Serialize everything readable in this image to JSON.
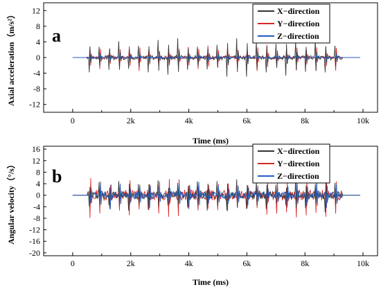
{
  "chart_data": [
    {
      "type": "line",
      "panel_label": "a",
      "xlabel": "Time (ms)",
      "ylabel": "Axial acceleration（m/s²）",
      "x_ticks": [
        "0",
        "2k",
        "4k",
        "6k",
        "8k",
        "10k"
      ],
      "y_ticks": [
        "12",
        "8",
        "4",
        "0",
        "-4",
        "-8",
        "-12"
      ],
      "xlim": [
        -1000,
        10500
      ],
      "ylim": [
        -14,
        14
      ],
      "x_range_signal": [
        500,
        9300
      ],
      "baseline_x_range": [
        0,
        9900
      ],
      "event_count": 26,
      "legend_position": "top-right",
      "grid": false,
      "series": [
        {
          "name": "X−direction",
          "color": "#333333",
          "peak_amplitude": 5.0
        },
        {
          "name": "Y−direction",
          "color": "#d62728",
          "peak_amplitude": 3.5
        },
        {
          "name": "Z−direction",
          "color": "#1f5fbf",
          "peak_amplitude": 0.8
        }
      ]
    },
    {
      "type": "line",
      "panel_label": "b",
      "xlabel": "Time (ms)",
      "ylabel": "Angular velocity（°/s）",
      "x_ticks": [
        "0",
        "2k",
        "4k",
        "6k",
        "8k",
        "10k"
      ],
      "y_ticks": [
        "16",
        "12",
        "8",
        "4",
        "0",
        "-4",
        "-8",
        "-12",
        "-16",
        "-20"
      ],
      "xlim": [
        -1000,
        10500
      ],
      "ylim": [
        -21,
        17
      ],
      "x_range_signal": [
        500,
        9300
      ],
      "baseline_x_range": [
        0,
        9900
      ],
      "event_count": 26,
      "legend_position": "top-right",
      "grid": false,
      "series": [
        {
          "name": "X−direction",
          "color": "#333333",
          "peak_amplitude": 6.0
        },
        {
          "name": "Y−direction",
          "color": "#d62728",
          "peak_amplitude": 8.0
        },
        {
          "name": "Z−direction",
          "color": "#1f5fbf",
          "peak_amplitude": 5.0
        }
      ]
    }
  ]
}
